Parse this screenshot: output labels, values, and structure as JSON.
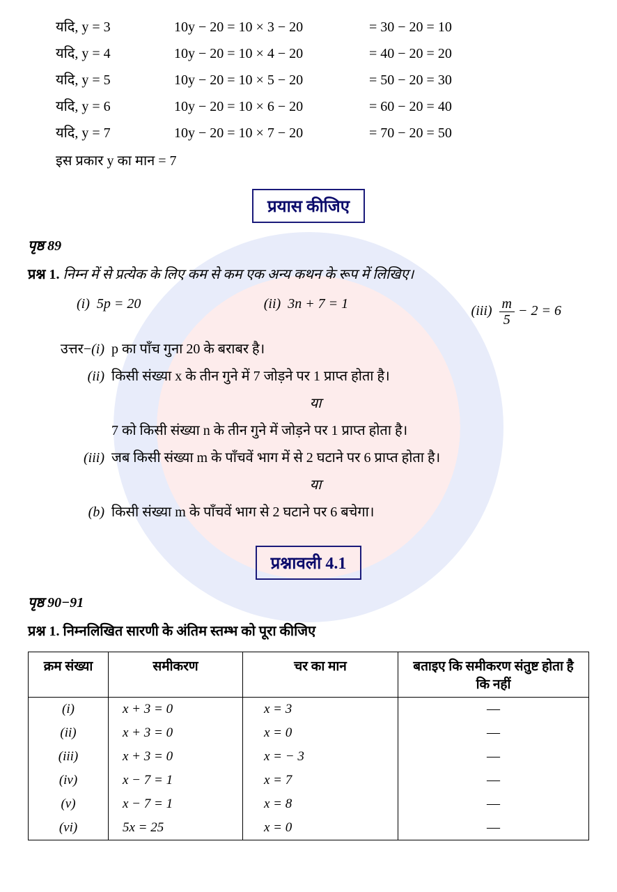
{
  "yadi_rows": [
    {
      "c1": "यदि,  y  =  3",
      "c2": "10y − 20  =  10 × 3 − 20",
      "c3": "=  30 − 20 = 10"
    },
    {
      "c1": "यदि,  y  =  4",
      "c2": "10y − 20  =  10 × 4 − 20",
      "c3": "=  40 − 20 = 20"
    },
    {
      "c1": "यदि,  y  =  5",
      "c2": "10y − 20  =  10 × 5 − 20",
      "c3": "=  50 − 20 = 30"
    },
    {
      "c1": "यदि,  y  =  6",
      "c2": "10y − 20  =  10 × 6 − 20",
      "c3": "=  60 − 20 = 40"
    },
    {
      "c1": "यदि,  y  =  7",
      "c2": "10y − 20  =  10 × 7 − 20",
      "c3": "=  70 − 20 = 50"
    }
  ],
  "conclusion": "इस प्रकार y का मान = 7",
  "try_heading": "प्रयास कीजिए",
  "page89": "पृष्ठ 89",
  "q1_label": "प्रश्न 1.",
  "q1_text": "निम्न में से प्रत्येक के लिए कम से कम एक अन्य कथन के रूप में लिखिए।",
  "eq_i_lbl": "(i)",
  "eq_i": "5p = 20",
  "eq_ii_lbl": "(ii)",
  "eq_ii": "3n + 7 = 1",
  "eq_iii_lbl": "(iii)",
  "eq_iii_num": "m",
  "eq_iii_den": "5",
  "eq_iii_tail": " − 2 = 6",
  "ans_label": "उत्तर−",
  "ans_i_lbl": "(i)",
  "ans_i": "p का पाँच गुना 20 के बराबर है।",
  "ans_ii_lbl": "(ii)",
  "ans_ii": "किसी संख्या x के तीन गुने में 7 जोड़ने पर 1 प्राप्त होता है।",
  "or_text": "या",
  "ans_ii_alt": "7 को किसी संख्या n के तीन गुने में जोड़ने पर 1 प्राप्त होता है।",
  "ans_iii_lbl": "(iii)",
  "ans_iii": "जब किसी संख्या m के पाँचवें भाग में से 2 घटाने पर 6 प्राप्त होता है।",
  "ans_iii_alt_lbl": "(b)",
  "ans_iii_alt": "किसी संख्या m के पाँचवें भाग से 2 घटाने पर 6 बचेगा।",
  "ex_heading": "प्रश्नावली 4.1",
  "page9091": "पृष्ठ 90−91",
  "q1b_label": "प्रश्न 1.",
  "q1b_text": "निम्नलिखित सारणी के अंतिम स्तम्भ को पूरा कीजिए",
  "table": {
    "headers": [
      "क्रम\nसंख्या",
      "समीकरण",
      "चर का मान",
      "बताइए कि समीकरण\nसंतुष्ट होता है कि नहीं"
    ],
    "rows": [
      {
        "n": "(i)",
        "eq": "x + 3 = 0",
        "val": "x = 3",
        "sat": "—"
      },
      {
        "n": "(ii)",
        "eq": "x + 3 = 0",
        "val": "x = 0",
        "sat": "—"
      },
      {
        "n": "(iii)",
        "eq": "x + 3 = 0",
        "val": "x = − 3",
        "sat": "—"
      },
      {
        "n": "(iv)",
        "eq": "x − 7 = 1",
        "val": "x = 7",
        "sat": "—"
      },
      {
        "n": "(v)",
        "eq": "x − 7 = 1",
        "val": "x = 8",
        "sat": "—"
      },
      {
        "n": "(vi)",
        "eq": "5x = 25",
        "val": "x = 0",
        "sat": "—"
      }
    ]
  }
}
